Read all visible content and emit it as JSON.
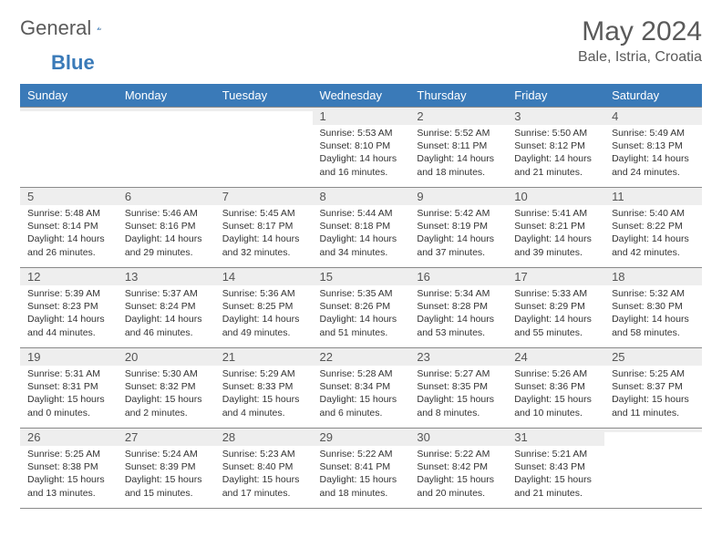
{
  "logo": {
    "text1": "General",
    "text2": "Blue"
  },
  "title": "May 2024",
  "location": "Bale, Istria, Croatia",
  "colors": {
    "header_bg": "#3a7ab8",
    "header_text": "#ffffff",
    "daynum_bg": "#eeeeee",
    "border": "#8a8a8a",
    "text": "#333333",
    "title_text": "#5a5a5a"
  },
  "fonts": {
    "title_size": 30,
    "location_size": 16,
    "header_size": 13,
    "daynum_size": 13,
    "info_size": 10.5
  },
  "day_headers": [
    "Sunday",
    "Monday",
    "Tuesday",
    "Wednesday",
    "Thursday",
    "Friday",
    "Saturday"
  ],
  "weeks": [
    [
      {
        "num": "",
        "sunrise": "",
        "sunset": "",
        "daylight": ""
      },
      {
        "num": "",
        "sunrise": "",
        "sunset": "",
        "daylight": ""
      },
      {
        "num": "",
        "sunrise": "",
        "sunset": "",
        "daylight": ""
      },
      {
        "num": "1",
        "sunrise": "Sunrise: 5:53 AM",
        "sunset": "Sunset: 8:10 PM",
        "daylight": "Daylight: 14 hours and 16 minutes."
      },
      {
        "num": "2",
        "sunrise": "Sunrise: 5:52 AM",
        "sunset": "Sunset: 8:11 PM",
        "daylight": "Daylight: 14 hours and 18 minutes."
      },
      {
        "num": "3",
        "sunrise": "Sunrise: 5:50 AM",
        "sunset": "Sunset: 8:12 PM",
        "daylight": "Daylight: 14 hours and 21 minutes."
      },
      {
        "num": "4",
        "sunrise": "Sunrise: 5:49 AM",
        "sunset": "Sunset: 8:13 PM",
        "daylight": "Daylight: 14 hours and 24 minutes."
      }
    ],
    [
      {
        "num": "5",
        "sunrise": "Sunrise: 5:48 AM",
        "sunset": "Sunset: 8:14 PM",
        "daylight": "Daylight: 14 hours and 26 minutes."
      },
      {
        "num": "6",
        "sunrise": "Sunrise: 5:46 AM",
        "sunset": "Sunset: 8:16 PM",
        "daylight": "Daylight: 14 hours and 29 minutes."
      },
      {
        "num": "7",
        "sunrise": "Sunrise: 5:45 AM",
        "sunset": "Sunset: 8:17 PM",
        "daylight": "Daylight: 14 hours and 32 minutes."
      },
      {
        "num": "8",
        "sunrise": "Sunrise: 5:44 AM",
        "sunset": "Sunset: 8:18 PM",
        "daylight": "Daylight: 14 hours and 34 minutes."
      },
      {
        "num": "9",
        "sunrise": "Sunrise: 5:42 AM",
        "sunset": "Sunset: 8:19 PM",
        "daylight": "Daylight: 14 hours and 37 minutes."
      },
      {
        "num": "10",
        "sunrise": "Sunrise: 5:41 AM",
        "sunset": "Sunset: 8:21 PM",
        "daylight": "Daylight: 14 hours and 39 minutes."
      },
      {
        "num": "11",
        "sunrise": "Sunrise: 5:40 AM",
        "sunset": "Sunset: 8:22 PM",
        "daylight": "Daylight: 14 hours and 42 minutes."
      }
    ],
    [
      {
        "num": "12",
        "sunrise": "Sunrise: 5:39 AM",
        "sunset": "Sunset: 8:23 PM",
        "daylight": "Daylight: 14 hours and 44 minutes."
      },
      {
        "num": "13",
        "sunrise": "Sunrise: 5:37 AM",
        "sunset": "Sunset: 8:24 PM",
        "daylight": "Daylight: 14 hours and 46 minutes."
      },
      {
        "num": "14",
        "sunrise": "Sunrise: 5:36 AM",
        "sunset": "Sunset: 8:25 PM",
        "daylight": "Daylight: 14 hours and 49 minutes."
      },
      {
        "num": "15",
        "sunrise": "Sunrise: 5:35 AM",
        "sunset": "Sunset: 8:26 PM",
        "daylight": "Daylight: 14 hours and 51 minutes."
      },
      {
        "num": "16",
        "sunrise": "Sunrise: 5:34 AM",
        "sunset": "Sunset: 8:28 PM",
        "daylight": "Daylight: 14 hours and 53 minutes."
      },
      {
        "num": "17",
        "sunrise": "Sunrise: 5:33 AM",
        "sunset": "Sunset: 8:29 PM",
        "daylight": "Daylight: 14 hours and 55 minutes."
      },
      {
        "num": "18",
        "sunrise": "Sunrise: 5:32 AM",
        "sunset": "Sunset: 8:30 PM",
        "daylight": "Daylight: 14 hours and 58 minutes."
      }
    ],
    [
      {
        "num": "19",
        "sunrise": "Sunrise: 5:31 AM",
        "sunset": "Sunset: 8:31 PM",
        "daylight": "Daylight: 15 hours and 0 minutes."
      },
      {
        "num": "20",
        "sunrise": "Sunrise: 5:30 AM",
        "sunset": "Sunset: 8:32 PM",
        "daylight": "Daylight: 15 hours and 2 minutes."
      },
      {
        "num": "21",
        "sunrise": "Sunrise: 5:29 AM",
        "sunset": "Sunset: 8:33 PM",
        "daylight": "Daylight: 15 hours and 4 minutes."
      },
      {
        "num": "22",
        "sunrise": "Sunrise: 5:28 AM",
        "sunset": "Sunset: 8:34 PM",
        "daylight": "Daylight: 15 hours and 6 minutes."
      },
      {
        "num": "23",
        "sunrise": "Sunrise: 5:27 AM",
        "sunset": "Sunset: 8:35 PM",
        "daylight": "Daylight: 15 hours and 8 minutes."
      },
      {
        "num": "24",
        "sunrise": "Sunrise: 5:26 AM",
        "sunset": "Sunset: 8:36 PM",
        "daylight": "Daylight: 15 hours and 10 minutes."
      },
      {
        "num": "25",
        "sunrise": "Sunrise: 5:25 AM",
        "sunset": "Sunset: 8:37 PM",
        "daylight": "Daylight: 15 hours and 11 minutes."
      }
    ],
    [
      {
        "num": "26",
        "sunrise": "Sunrise: 5:25 AM",
        "sunset": "Sunset: 8:38 PM",
        "daylight": "Daylight: 15 hours and 13 minutes."
      },
      {
        "num": "27",
        "sunrise": "Sunrise: 5:24 AM",
        "sunset": "Sunset: 8:39 PM",
        "daylight": "Daylight: 15 hours and 15 minutes."
      },
      {
        "num": "28",
        "sunrise": "Sunrise: 5:23 AM",
        "sunset": "Sunset: 8:40 PM",
        "daylight": "Daylight: 15 hours and 17 minutes."
      },
      {
        "num": "29",
        "sunrise": "Sunrise: 5:22 AM",
        "sunset": "Sunset: 8:41 PM",
        "daylight": "Daylight: 15 hours and 18 minutes."
      },
      {
        "num": "30",
        "sunrise": "Sunrise: 5:22 AM",
        "sunset": "Sunset: 8:42 PM",
        "daylight": "Daylight: 15 hours and 20 minutes."
      },
      {
        "num": "31",
        "sunrise": "Sunrise: 5:21 AM",
        "sunset": "Sunset: 8:43 PM",
        "daylight": "Daylight: 15 hours and 21 minutes."
      },
      {
        "num": "",
        "sunrise": "",
        "sunset": "",
        "daylight": ""
      }
    ]
  ]
}
